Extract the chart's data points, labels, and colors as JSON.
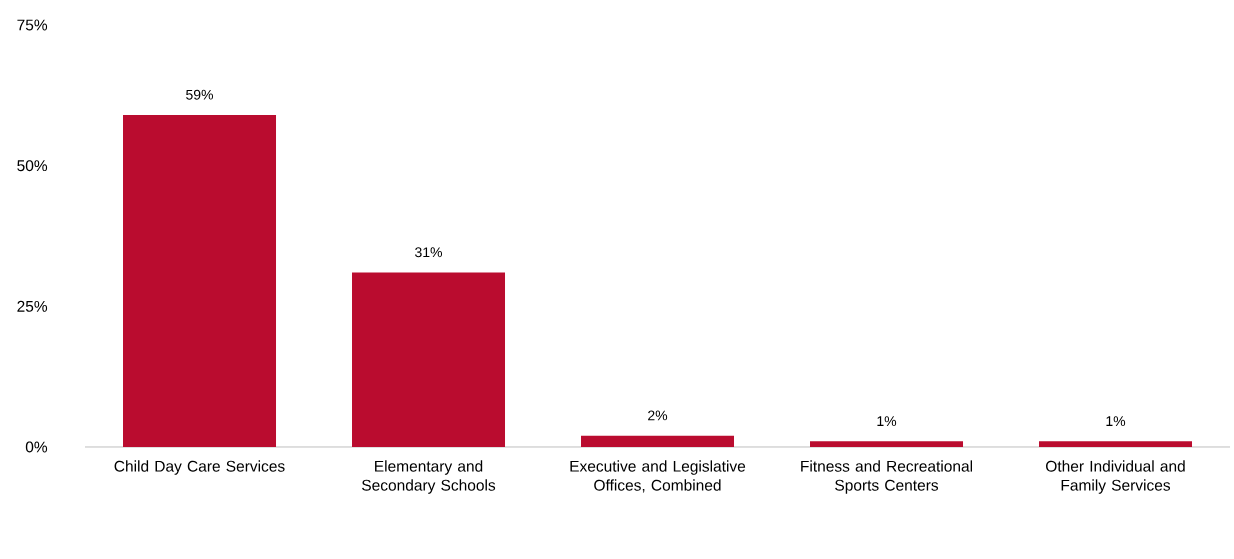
{
  "chart_data": {
    "type": "bar",
    "categories": [
      "Child Day Care Services",
      "Elementary and Secondary Schools",
      "Executive and Legislative Offices, Combined",
      "Fitness and Recreational Sports Centers",
      "Other Individual and Family Services"
    ],
    "values": [
      59,
      31,
      2,
      1,
      1
    ],
    "value_labels": [
      "59%",
      "31%",
      "2%",
      "1%",
      "1%"
    ],
    "color": "#ba0c2f",
    "ylim": [
      0,
      75
    ],
    "yticks": [
      {
        "value": 0,
        "label": "0%"
      },
      {
        "value": 25,
        "label": "25%"
      },
      {
        "value": 50,
        "label": "50%"
      },
      {
        "value": 75,
        "label": "75%"
      }
    ],
    "grid": false
  }
}
